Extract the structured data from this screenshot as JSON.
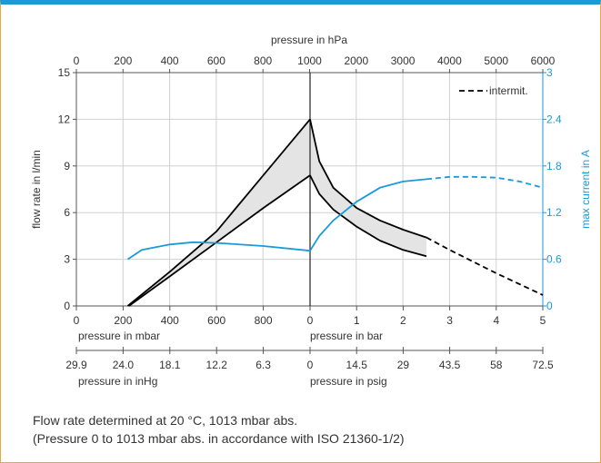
{
  "chart_data": {
    "type": "line",
    "axes": {
      "top_x_label": "pressure in hPa",
      "top_x_ticks": [
        "0",
        "200",
        "400",
        "600",
        "800",
        "1000",
        "2000",
        "3000",
        "4000",
        "5000",
        "6000"
      ],
      "left_y_label": "flow rate in l/min",
      "left_y_ticks": [
        "0",
        "3",
        "6",
        "9",
        "12",
        "15"
      ],
      "left_y_range": [
        0,
        15
      ],
      "right_y_label": "max current in A",
      "right_y_ticks": [
        "0",
        "0.6",
        "1.2",
        "1.8",
        "2.4",
        "3"
      ],
      "right_y_range": [
        0,
        3
      ],
      "vacuum_x_label": "pressure in mbar",
      "vacuum_x_ticks": [
        "0",
        "200",
        "400",
        "600",
        "800",
        "0"
      ],
      "pressure_x_label": "pressure in bar",
      "pressure_x_ticks": [
        "1",
        "2",
        "3",
        "4",
        "5"
      ],
      "inhg_label": "pressure in inHg",
      "inhg_ticks": [
        "29.9",
        "24.0",
        "18.1",
        "12.2",
        "6.3",
        "0"
      ],
      "psig_label": "pressure in psig",
      "psig_ticks": [
        "14.5",
        "29",
        "43.5",
        "58",
        "72.5"
      ]
    },
    "grid": true,
    "legend": {
      "position": "top-right",
      "label": "intermit."
    },
    "series": [
      {
        "axis": "left",
        "style": "solid",
        "color": "#000000",
        "vacuum": [
          [
            220,
            0
          ],
          [
            400,
            2.2
          ],
          [
            600,
            4.8
          ],
          [
            800,
            8.4
          ],
          [
            1000,
            12
          ]
        ],
        "pressure": [
          [
            0,
            12
          ],
          [
            0.2,
            9.3
          ],
          [
            0.5,
            7.6
          ],
          [
            1.0,
            6.3
          ],
          [
            1.5,
            5.5
          ],
          [
            2.0,
            4.9
          ],
          [
            2.5,
            4.4
          ]
        ]
      },
      {
        "axis": "left",
        "style": "solid",
        "color": "#000000",
        "vacuum": [
          [
            225,
            0
          ],
          [
            400,
            1.9
          ],
          [
            600,
            4.1
          ],
          [
            800,
            6.3
          ],
          [
            1000,
            8.4
          ]
        ],
        "pressure": [
          [
            0,
            8.4
          ],
          [
            0.2,
            7.2
          ],
          [
            0.5,
            6.2
          ],
          [
            1.0,
            5.1
          ],
          [
            1.5,
            4.2
          ],
          [
            2.0,
            3.6
          ],
          [
            2.5,
            3.2
          ]
        ]
      },
      {
        "axis": "left",
        "style": "dashed",
        "color": "#000000",
        "pressure": [
          [
            2.5,
            4.4
          ],
          [
            3.0,
            3.6
          ],
          [
            4.0,
            2.1
          ],
          [
            5.0,
            0.7
          ]
        ]
      },
      {
        "axis": "right",
        "style": "solid",
        "color": "#1a9ad6",
        "vacuum": [
          [
            220,
            0.6
          ],
          [
            280,
            0.72
          ],
          [
            400,
            0.79
          ],
          [
            500,
            0.82
          ],
          [
            600,
            0.81
          ],
          [
            800,
            0.77
          ],
          [
            1000,
            0.71
          ]
        ],
        "pressure": [
          [
            0,
            0.71
          ],
          [
            0.2,
            0.9
          ],
          [
            0.5,
            1.1
          ],
          [
            1.0,
            1.34
          ],
          [
            1.5,
            1.52
          ],
          [
            2.0,
            1.6
          ],
          [
            2.5,
            1.63
          ]
        ]
      },
      {
        "axis": "right",
        "style": "dashed",
        "color": "#1a9ad6",
        "pressure": [
          [
            2.5,
            1.63
          ],
          [
            3.0,
            1.66
          ],
          [
            3.5,
            1.66
          ],
          [
            4.0,
            1.65
          ],
          [
            4.5,
            1.6
          ],
          [
            5.0,
            1.52
          ]
        ]
      }
    ]
  },
  "notes": {
    "line1": "Flow rate determined at 20 °C, 1013 mbar abs.",
    "line2": "(Pressure 0 to 1013 mbar abs. in accordance with ISO 21360-1/2)"
  },
  "colors": {
    "accent": "#1a9ad6",
    "border": "#e9a93a",
    "band": "#e4e4e4",
    "grid": "#d0d0d0",
    "ink": "#000000"
  }
}
